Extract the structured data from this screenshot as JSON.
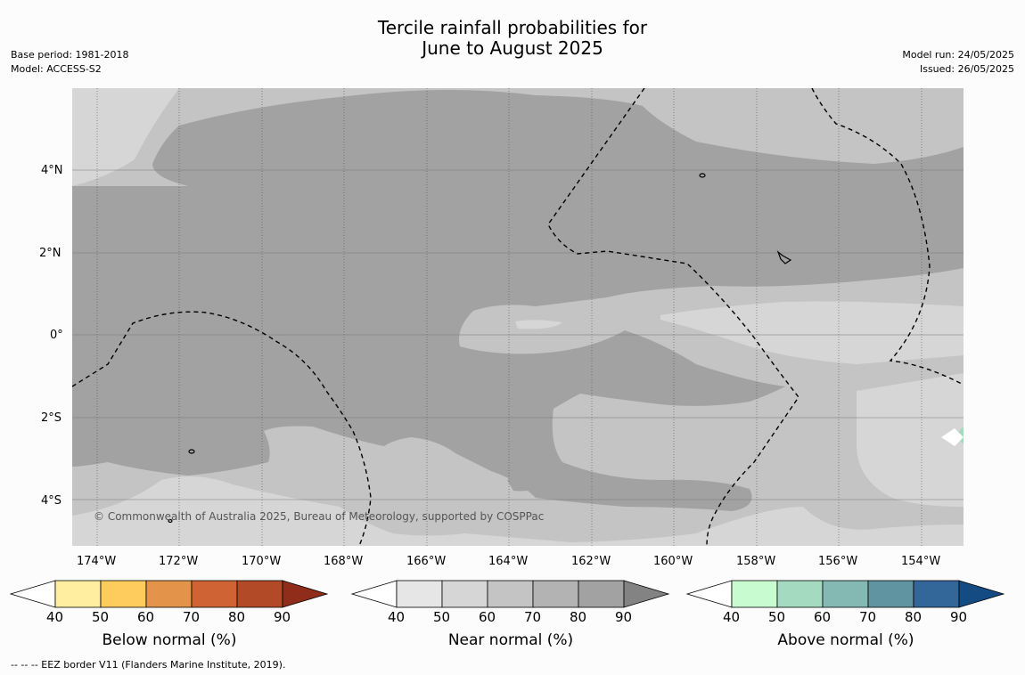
{
  "title_line1": "Tercile rainfall probabilities for",
  "title_line2": "June to August 2025",
  "base_period": "Base period: 1981-2018",
  "model": "Model: ACCESS-S2",
  "model_run": "Model run: 24/05/2025",
  "issued": "Issued: 26/05/2025",
  "copyright": "© Commonwealth of Australia 2025, Bureau of Meteorology, supported by COSPPac",
  "lat_labels": [
    "4°N",
    "2°N",
    "0°",
    "2°S",
    "4°S"
  ],
  "lon_labels": [
    "174°W",
    "172°W",
    "170°W",
    "168°W",
    "166°W",
    "164°W",
    "162°W",
    "160°W",
    "158°W",
    "156°W",
    "154°W"
  ],
  "colorbars": [
    {
      "label": "Below normal (%)",
      "ticks": [
        "40",
        "50",
        "60",
        "70",
        "80",
        "90"
      ],
      "colors": [
        "#ffffff",
        "#ffeda0",
        "#fecc5c",
        "#e3944a",
        "#cf6334",
        "#b24a27",
        "#8f2c1a"
      ]
    },
    {
      "label": "Near normal (%)",
      "ticks": [
        "40",
        "50",
        "60",
        "70",
        "80",
        "90"
      ],
      "colors": [
        "#ffffff",
        "#e6e6e6",
        "#d6d6d6",
        "#c4c4c4",
        "#b3b3b3",
        "#a2a2a2",
        "#838383"
      ]
    },
    {
      "label": "Above normal (%)",
      "ticks": [
        "40",
        "50",
        "60",
        "70",
        "80",
        "90"
      ],
      "colors": [
        "#ffffff",
        "#c8fcd0",
        "#a4dac0",
        "#84b8b2",
        "#5f94a0",
        "#336699",
        "#134b82"
      ]
    }
  ],
  "footnote": "-- -- -- EEZ border V11 (Flanders Marine Institute, 2019)."
}
